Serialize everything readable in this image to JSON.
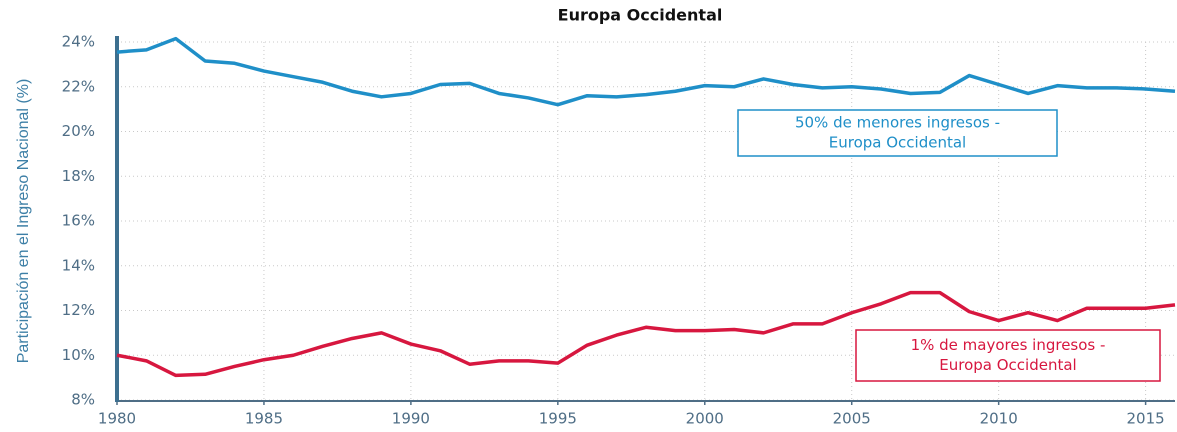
{
  "chart_data": {
    "type": "line",
    "title": "Europa Occidental",
    "y_label": "Participación en el Ingreso Nacional (%)",
    "x": [
      1980,
      1981,
      1982,
      1983,
      1984,
      1985,
      1986,
      1987,
      1988,
      1989,
      1990,
      1991,
      1992,
      1993,
      1994,
      1995,
      1996,
      1997,
      1998,
      1999,
      2000,
      2001,
      2002,
      2003,
      2004,
      2005,
      2006,
      2007,
      2008,
      2009,
      2010,
      2011,
      2012,
      2013,
      2014,
      2015,
      2016
    ],
    "series": [
      {
        "color": "#1f8fc8",
        "values": [
          23.55,
          23.65,
          24.15,
          23.15,
          23.05,
          22.7,
          22.45,
          22.2,
          21.8,
          21.55,
          21.7,
          22.1,
          22.15,
          21.7,
          21.5,
          21.2,
          21.6,
          21.55,
          21.65,
          21.8,
          22.05,
          22.0,
          22.35,
          22.1,
          21.95,
          22.0,
          21.9,
          21.7,
          21.75,
          22.5,
          22.1,
          21.7,
          22.05,
          21.95,
          21.95,
          21.9,
          21.8
        ]
      },
      {
        "color": "#d7173f",
        "values": [
          10.0,
          9.75,
          9.1,
          9.15,
          9.5,
          9.8,
          10.0,
          10.4,
          10.75,
          11.0,
          10.5,
          10.2,
          9.6,
          9.75,
          9.75,
          9.65,
          10.45,
          10.9,
          11.25,
          11.1,
          11.1,
          11.15,
          11.0,
          11.4,
          11.4,
          11.9,
          12.3,
          12.8,
          12.8,
          11.95,
          11.55,
          11.9,
          11.55,
          12.1,
          12.1,
          12.1,
          12.25
        ]
      }
    ],
    "annotations": [
      {
        "lines": [
          "50% de menores ingresos -",
          "Europa Occidental"
        ],
        "color": "#1f8fc8"
      },
      {
        "lines": [
          "1% de mayores ingresos -",
          "Europa Occidental"
        ],
        "color": "#d7173f"
      }
    ],
    "xlim": [
      1980,
      2016
    ],
    "xticks": [
      1980,
      1985,
      1990,
      1995,
      2000,
      2005,
      2010,
      2015
    ],
    "ylim": [
      8,
      24
    ],
    "yticks": [
      {
        "value": 8,
        "label": "8%"
      },
      {
        "value": 10,
        "label": "10%"
      },
      {
        "value": 12,
        "label": "12%"
      },
      {
        "value": 14,
        "label": "14%"
      },
      {
        "value": 16,
        "label": "16%"
      },
      {
        "value": 18,
        "label": "18%"
      },
      {
        "value": 20,
        "label": "20%"
      },
      {
        "value": 22,
        "label": "22%"
      },
      {
        "value": 24,
        "label": "24%"
      }
    ],
    "grid": true
  }
}
